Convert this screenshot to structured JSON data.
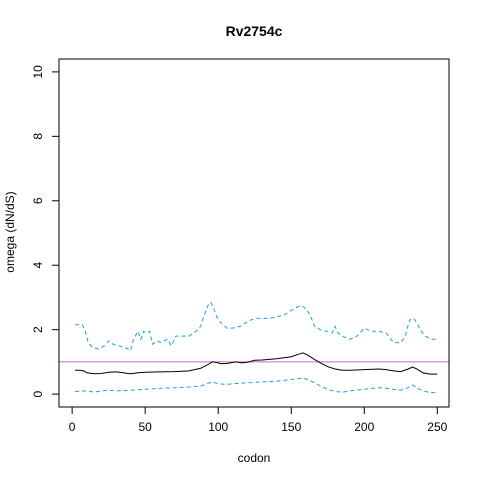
{
  "chart_data": {
    "type": "line",
    "title": "Rv2754c",
    "xlabel": "codon",
    "ylabel": "omega (dN/dS)",
    "xlim": [
      -9,
      258
    ],
    "ylim": [
      -0.4,
      10.4
    ],
    "xticks": [
      0,
      50,
      100,
      150,
      200,
      250
    ],
    "yticks": [
      0,
      2,
      4,
      6,
      8,
      10
    ],
    "grid": false,
    "reference_line": {
      "y": 1.0,
      "color": "#cc66cc"
    },
    "series": [
      {
        "role": "estimate",
        "color": "#000000",
        "style": "solid",
        "points": [
          [
            2,
            0.74
          ],
          [
            5,
            0.74
          ],
          [
            8,
            0.72
          ],
          [
            10,
            0.66
          ],
          [
            15,
            0.63
          ],
          [
            20,
            0.64
          ],
          [
            25,
            0.68
          ],
          [
            30,
            0.69
          ],
          [
            35,
            0.66
          ],
          [
            40,
            0.63
          ],
          [
            45,
            0.66
          ],
          [
            50,
            0.68
          ],
          [
            60,
            0.69
          ],
          [
            70,
            0.7
          ],
          [
            80,
            0.72
          ],
          [
            88,
            0.8
          ],
          [
            93,
            0.92
          ],
          [
            96,
            1.0
          ],
          [
            99,
            0.98
          ],
          [
            102,
            0.94
          ],
          [
            107,
            0.96
          ],
          [
            112,
            1.0
          ],
          [
            116,
            0.97
          ],
          [
            120,
            0.99
          ],
          [
            125,
            1.05
          ],
          [
            130,
            1.06
          ],
          [
            140,
            1.1
          ],
          [
            150,
            1.16
          ],
          [
            155,
            1.24
          ],
          [
            158,
            1.28
          ],
          [
            161,
            1.22
          ],
          [
            165,
            1.1
          ],
          [
            170,
            0.97
          ],
          [
            175,
            0.85
          ],
          [
            180,
            0.78
          ],
          [
            185,
            0.74
          ],
          [
            190,
            0.74
          ],
          [
            200,
            0.76
          ],
          [
            210,
            0.78
          ],
          [
            215,
            0.76
          ],
          [
            220,
            0.72
          ],
          [
            225,
            0.7
          ],
          [
            230,
            0.78
          ],
          [
            233,
            0.84
          ],
          [
            236,
            0.78
          ],
          [
            240,
            0.66
          ],
          [
            245,
            0.62
          ],
          [
            250,
            0.62
          ]
        ]
      },
      {
        "role": "upper",
        "color": "#1aa0e0",
        "style": "dashed",
        "points": [
          [
            2,
            2.15
          ],
          [
            7,
            2.15
          ],
          [
            9,
            1.95
          ],
          [
            11,
            1.6
          ],
          [
            14,
            1.45
          ],
          [
            18,
            1.4
          ],
          [
            22,
            1.5
          ],
          [
            25,
            1.65
          ],
          [
            28,
            1.55
          ],
          [
            32,
            1.5
          ],
          [
            36,
            1.45
          ],
          [
            40,
            1.35
          ],
          [
            42,
            1.7
          ],
          [
            45,
            1.95
          ],
          [
            47,
            1.7
          ],
          [
            49,
            1.95
          ],
          [
            51,
            1.9
          ],
          [
            53,
            1.95
          ],
          [
            55,
            1.55
          ],
          [
            58,
            1.65
          ],
          [
            61,
            1.6
          ],
          [
            65,
            1.7
          ],
          [
            68,
            1.5
          ],
          [
            71,
            1.8
          ],
          [
            75,
            1.8
          ],
          [
            80,
            1.8
          ],
          [
            85,
            1.95
          ],
          [
            88,
            2.1
          ],
          [
            90,
            2.4
          ],
          [
            93,
            2.75
          ],
          [
            95,
            2.85
          ],
          [
            97,
            2.65
          ],
          [
            99,
            2.4
          ],
          [
            102,
            2.2
          ],
          [
            106,
            2.05
          ],
          [
            110,
            2.05
          ],
          [
            115,
            2.1
          ],
          [
            120,
            2.25
          ],
          [
            125,
            2.35
          ],
          [
            135,
            2.35
          ],
          [
            140,
            2.4
          ],
          [
            145,
            2.45
          ],
          [
            150,
            2.6
          ],
          [
            154,
            2.7
          ],
          [
            157,
            2.75
          ],
          [
            160,
            2.65
          ],
          [
            163,
            2.45
          ],
          [
            166,
            2.1
          ],
          [
            170,
            2.0
          ],
          [
            174,
            1.95
          ],
          [
            178,
            1.9
          ],
          [
            180,
            2.1
          ],
          [
            182,
            1.9
          ],
          [
            185,
            1.8
          ],
          [
            190,
            1.7
          ],
          [
            195,
            1.8
          ],
          [
            200,
            2.05
          ],
          [
            205,
            1.95
          ],
          [
            210,
            1.95
          ],
          [
            215,
            1.9
          ],
          [
            220,
            1.6
          ],
          [
            225,
            1.6
          ],
          [
            228,
            1.8
          ],
          [
            231,
            2.3
          ],
          [
            234,
            2.35
          ],
          [
            236,
            2.2
          ],
          [
            239,
            1.95
          ],
          [
            242,
            1.8
          ],
          [
            246,
            1.7
          ],
          [
            250,
            1.7
          ]
        ]
      },
      {
        "role": "lower",
        "color": "#1aa0e0",
        "style": "dashed",
        "points": [
          [
            2,
            0.08
          ],
          [
            10,
            0.1
          ],
          [
            15,
            0.06
          ],
          [
            20,
            0.1
          ],
          [
            25,
            0.12
          ],
          [
            30,
            0.1
          ],
          [
            40,
            0.12
          ],
          [
            50,
            0.15
          ],
          [
            60,
            0.18
          ],
          [
            70,
            0.2
          ],
          [
            80,
            0.22
          ],
          [
            88,
            0.25
          ],
          [
            92,
            0.32
          ],
          [
            96,
            0.38
          ],
          [
            100,
            0.32
          ],
          [
            106,
            0.3
          ],
          [
            110,
            0.32
          ],
          [
            120,
            0.35
          ],
          [
            130,
            0.38
          ],
          [
            140,
            0.4
          ],
          [
            150,
            0.45
          ],
          [
            155,
            0.48
          ],
          [
            158,
            0.5
          ],
          [
            162,
            0.44
          ],
          [
            166,
            0.35
          ],
          [
            170,
            0.25
          ],
          [
            175,
            0.15
          ],
          [
            180,
            0.08
          ],
          [
            185,
            0.06
          ],
          [
            190,
            0.1
          ],
          [
            200,
            0.15
          ],
          [
            210,
            0.2
          ],
          [
            215,
            0.18
          ],
          [
            220,
            0.15
          ],
          [
            225,
            0.12
          ],
          [
            230,
            0.2
          ],
          [
            233,
            0.28
          ],
          [
            236,
            0.2
          ],
          [
            240,
            0.1
          ],
          [
            245,
            0.05
          ],
          [
            250,
            0.04
          ]
        ]
      }
    ]
  }
}
